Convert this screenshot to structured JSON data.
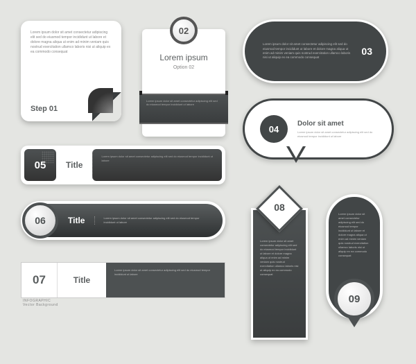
{
  "background": "#e4e5e2",
  "dark": "#424647",
  "dark2": "#4d5152",
  "light": "#ffffff",
  "text_gray": "#5a5e5f",
  "filler": "Lorem ipsum dolor sit amet consectetur adipiscing elit sed do eiusmod tempor incididunt ut labore et dolore magna aliqua ut enim ad minim veniam quis nostrud exercitation ullamco laboris nisi ut aliquip ex ea commodo consequat",
  "short_filler": "Lorem ipsum dolor sit amet consectetur adipiscing elit sed do eiusmod tempor incididunt ut labore",
  "e01": {
    "num": "01",
    "label": "Step 01",
    "type": "card-pagecurl",
    "bg": "#ffffff",
    "radius": 12
  },
  "e02": {
    "num": "02",
    "title": "Lorem ipsum",
    "option": "Option 02",
    "type": "vertical-badge-card",
    "badge_border": "#555555",
    "band_bg": "#3a3d3e"
  },
  "e03": {
    "num": "03",
    "type": "rounded-rect",
    "bg": "#424647",
    "border": "#ffffff",
    "radius": 46
  },
  "e04": {
    "num": "04",
    "title": "Dolor sit amet",
    "type": "speech-pill",
    "bg": "#ffffff",
    "border": "#424647",
    "radius": 44
  },
  "e05": {
    "num": "05",
    "title": "Title",
    "type": "bar-square-badge",
    "bg": "#ffffff",
    "badge_bg": "#333333"
  },
  "e06": {
    "num": "06",
    "title": "Title",
    "type": "bar-pill",
    "bg_gradient": [
      "#5a5e5f",
      "#2e3132"
    ],
    "circle_bg": "#ffffff"
  },
  "e07": {
    "num": "07",
    "title": "Title",
    "subtitle": "INFOGRAPHIC",
    "subtitle2": "Vector Background",
    "type": "bar-flat",
    "bg": "#ffffff",
    "dark_bg": "#4d5152"
  },
  "e08": {
    "num": "08",
    "type": "vertical-diamond",
    "bg": "#3a3d3e",
    "diamond_bg": "#ffffff"
  },
  "e09": {
    "num": "09",
    "type": "vertical-pill-pointer",
    "bg": "#424647",
    "circle_bg": "#ffffff",
    "radius": 41
  }
}
